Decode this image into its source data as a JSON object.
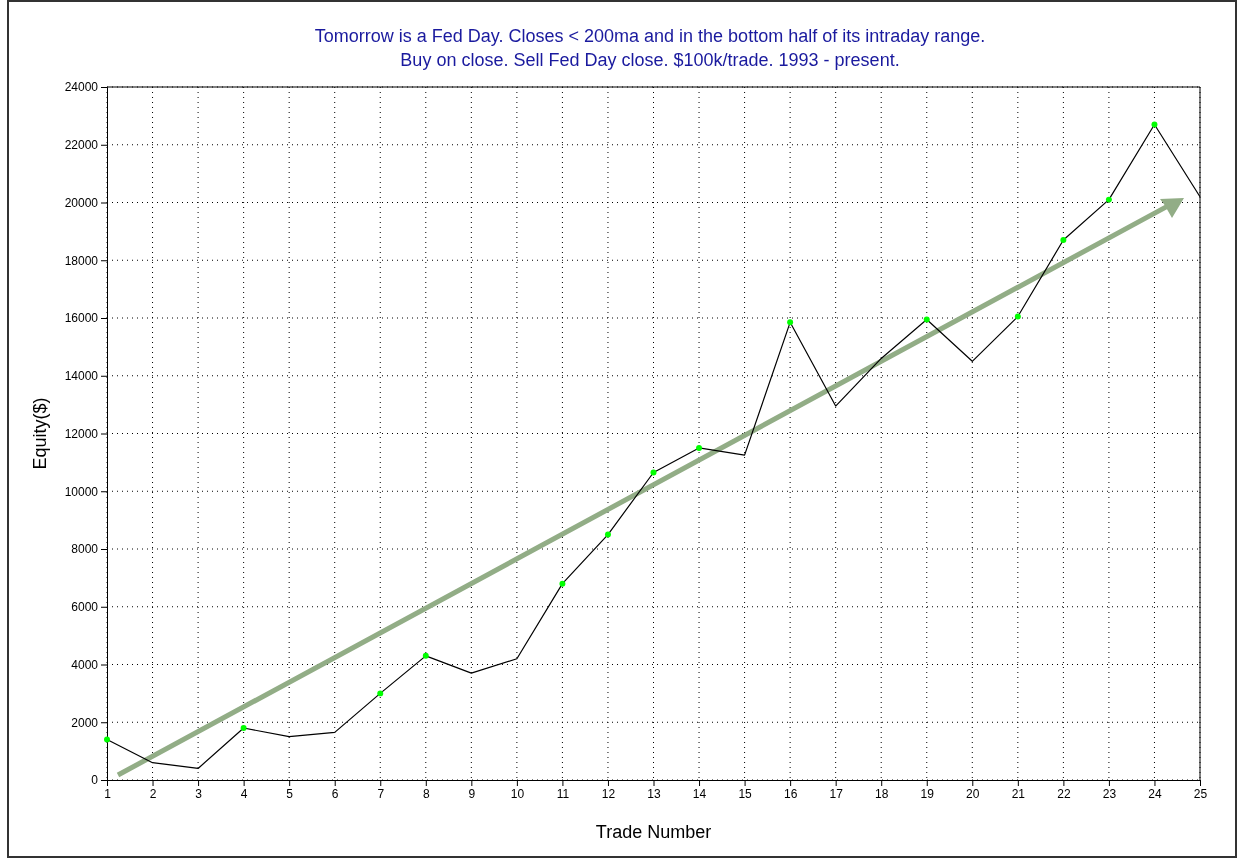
{
  "chart_data": {
    "type": "line",
    "title": "Tomorrow is a Fed Day. Closes < 200ma and in the bottom half of its intraday range.",
    "subtitle": "Buy on close. Sell Fed Day close. $100k/trade. 1993 - present.",
    "xlabel": "Trade Number",
    "ylabel": "Equity($)",
    "x": [
      1,
      2,
      3,
      4,
      5,
      6,
      7,
      8,
      9,
      10,
      11,
      12,
      13,
      14,
      15,
      16,
      17,
      18,
      19,
      20,
      21,
      22,
      23,
      24,
      25
    ],
    "series": [
      {
        "color": "#000000",
        "values": [
          1400,
          600,
          400,
          1800,
          1500,
          1650,
          3000,
          4300,
          3700,
          4200,
          6800,
          8500,
          10650,
          11500,
          11250,
          15850,
          12950,
          14600,
          15950,
          14500,
          16050,
          18700,
          20100,
          22700,
          20200
        ]
      },
      {
        "type": "scatter",
        "color": "#00ff00",
        "marker": "circle",
        "x": [
          1,
          4,
          7,
          8,
          11,
          12,
          13,
          14,
          16,
          19,
          21,
          22,
          23,
          24
        ],
        "values": [
          1400,
          1800,
          3000,
          4300,
          6800,
          8500,
          10650,
          11500,
          15850,
          15950,
          16050,
          18700,
          20100,
          22700
        ]
      }
    ],
    "xlim": [
      1,
      25
    ],
    "xticks": [
      1,
      2,
      3,
      4,
      5,
      6,
      7,
      8,
      9,
      10,
      11,
      12,
      13,
      14,
      15,
      16,
      17,
      18,
      19,
      20,
      21,
      22,
      23,
      24,
      25
    ],
    "ylim": [
      0,
      24000
    ],
    "yticks": [
      0,
      2000,
      4000,
      6000,
      8000,
      10000,
      12000,
      14000,
      16000,
      18000,
      20000,
      22000,
      24000
    ],
    "grid": true
  }
}
